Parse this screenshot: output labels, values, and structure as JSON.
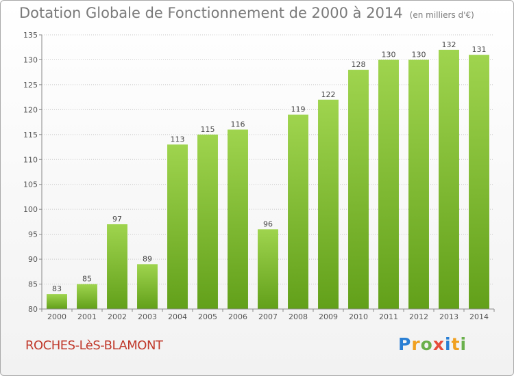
{
  "chart_data": {
    "type": "bar",
    "title": "Dotation Globale de Fonctionnement de 2000 à 2014",
    "subtitle": "(en milliers d'€)",
    "categories": [
      "2000",
      "2001",
      "2002",
      "2003",
      "2004",
      "2005",
      "2006",
      "2007",
      "2008",
      "2009",
      "2010",
      "2011",
      "2012",
      "2013",
      "2014"
    ],
    "values": [
      83,
      85,
      97,
      89,
      113,
      115,
      116,
      96,
      119,
      122,
      128,
      130,
      130,
      132,
      131
    ],
    "xlabel": "",
    "ylabel": "",
    "ylim": [
      80,
      135
    ],
    "yticks": [
      80,
      85,
      90,
      95,
      100,
      105,
      110,
      115,
      120,
      125,
      130,
      135
    ],
    "grid": true,
    "bar_color": "#7cb82f"
  },
  "footer": {
    "place_name": "ROCHES-LèS-BLAMONT",
    "logo_letters": [
      "P",
      "r",
      "o",
      "x",
      "i",
      "t",
      "i"
    ]
  }
}
